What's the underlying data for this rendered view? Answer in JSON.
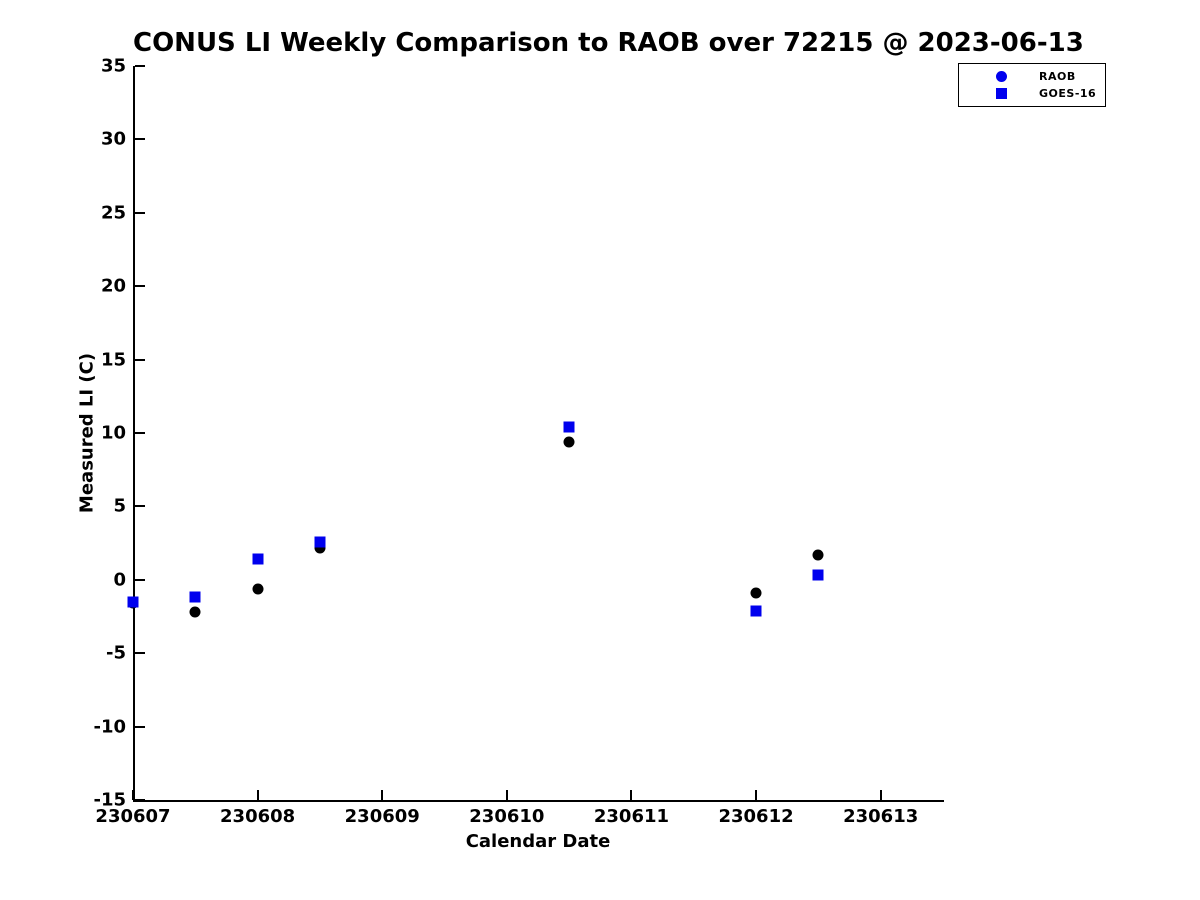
{
  "title": "CONUS LI Weekly Comparison to RAOB over 72215 @ 2023-06-13",
  "colors": {
    "series_blue": "#0000EE",
    "series_black": "#000000",
    "axis": "#000000",
    "background": "#FFFFFF"
  },
  "chart_data": {
    "type": "scatter",
    "title": "CONUS LI Weekly Comparison to RAOB over 72215 @ 2023-06-13",
    "xlabel": "Calendar Date",
    "ylabel": "Measured LI (C)",
    "xlim": [
      230607,
      230613.5
    ],
    "ylim": [
      -15,
      35
    ],
    "xticks": [
      230607,
      230608,
      230609,
      230610,
      230611,
      230612,
      230613
    ],
    "yticks": [
      35,
      30,
      25,
      20,
      15,
      10,
      5,
      0,
      -5,
      -10,
      -15
    ],
    "grid": false,
    "legend_position": "top-right-outside-plot",
    "series": [
      {
        "name": "RAOB",
        "marker": "circle",
        "color": "#000000",
        "x": [
          230607.0,
          230607.5,
          230608.0,
          230608.5,
          230610.5,
          230612.0,
          230612.5
        ],
        "y": [
          -1.6,
          -2.2,
          -0.6,
          2.2,
          9.4,
          -0.9,
          1.7
        ]
      },
      {
        "name": "GOES-16",
        "marker": "square",
        "color": "#0000EE",
        "x": [
          230607.0,
          230607.5,
          230608.0,
          230608.5,
          230610.5,
          230612.0,
          230612.5
        ],
        "y": [
          -1.5,
          -1.2,
          1.4,
          2.6,
          10.4,
          -2.1,
          0.3
        ]
      }
    ],
    "legend": [
      {
        "label": "RAOB",
        "marker": "circle",
        "color": "#0000EE"
      },
      {
        "label": "GOES-16",
        "marker": "square",
        "color": "#0000EE"
      }
    ]
  }
}
